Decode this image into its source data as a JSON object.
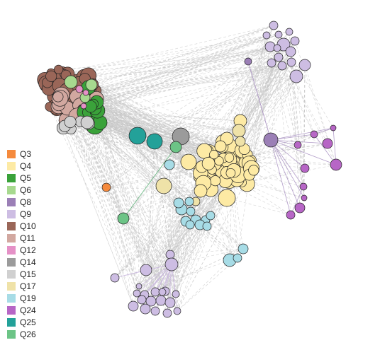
{
  "legend": {
    "items": [
      {
        "label": "Q3",
        "color": "#F58A3D"
      },
      {
        "label": "Q4",
        "color": "#FDEAA4"
      },
      {
        "label": "Q5",
        "color": "#3AA23A"
      },
      {
        "label": "Q6",
        "color": "#A7D98F"
      },
      {
        "label": "Q8",
        "color": "#9B7FB6"
      },
      {
        "label": "Q9",
        "color": "#CDBDE3"
      },
      {
        "label": "Q10",
        "color": "#9A6658"
      },
      {
        "label": "Q11",
        "color": "#D2A8A0"
      },
      {
        "label": "Q12",
        "color": "#E591C7"
      },
      {
        "label": "Q14",
        "color": "#9B9B9B"
      },
      {
        "label": "Q15",
        "color": "#D0D0D0"
      },
      {
        "label": "Q17",
        "color": "#EFE2A8"
      },
      {
        "label": "Q19",
        "color": "#A7DCE6"
      },
      {
        "label": "Q24",
        "color": "#B766C6"
      },
      {
        "label": "Q25",
        "color": "#23A199"
      },
      {
        "label": "Q26",
        "color": "#6CC486"
      }
    ]
  },
  "edge_colors": {
    "default": "#C8C8C8",
    "Q9": "#C9B7DE",
    "Q8": "#A58CC0",
    "Q26": "#5FB27A",
    "Q4": "#F2DFA0"
  }
}
